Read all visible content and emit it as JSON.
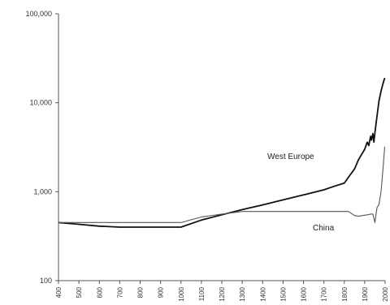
{
  "chart_data": {
    "type": "line",
    "yscale": "log",
    "ylim": [
      100,
      100000
    ],
    "xlim": [
      400,
      2000
    ],
    "yticks": [
      100,
      1000,
      10000,
      100000
    ],
    "ytick_labels": [
      "100",
      "1,000",
      "10,000",
      "100,000"
    ],
    "xticks": [
      400,
      500,
      600,
      700,
      800,
      900,
      1000,
      1100,
      1200,
      1300,
      1400,
      1500,
      1600,
      1700,
      1800,
      1900,
      2000
    ],
    "xtick_labels": [
      "400",
      "500",
      "600",
      "700",
      "800",
      "900",
      "1000",
      "1100",
      "1200",
      "1300",
      "1400",
      "1500",
      "1600",
      "1700",
      "1800",
      "1900",
      "2000"
    ],
    "grid": false,
    "series": [
      {
        "name": "West Europe",
        "color": "#111111",
        "points": [
          [
            400,
            450
          ],
          [
            500,
            430
          ],
          [
            600,
            410
          ],
          [
            700,
            400
          ],
          [
            800,
            400
          ],
          [
            900,
            400
          ],
          [
            1000,
            400
          ],
          [
            1100,
            480
          ],
          [
            1200,
            550
          ],
          [
            1300,
            630
          ],
          [
            1400,
            710
          ],
          [
            1500,
            810
          ],
          [
            1600,
            920
          ],
          [
            1700,
            1050
          ],
          [
            1750,
            1150
          ],
          [
            1800,
            1250
          ],
          [
            1820,
            1450
          ],
          [
            1850,
            1800
          ],
          [
            1870,
            2300
          ],
          [
            1900,
            3000
          ],
          [
            1910,
            3500
          ],
          [
            1913,
            3600
          ],
          [
            1920,
            3300
          ],
          [
            1929,
            4200
          ],
          [
            1933,
            3800
          ],
          [
            1940,
            4500
          ],
          [
            1945,
            3600
          ],
          [
            1950,
            4600
          ],
          [
            1960,
            7000
          ],
          [
            1970,
            10500
          ],
          [
            1980,
            13500
          ],
          [
            1990,
            16500
          ],
          [
            1998,
            19000
          ]
        ]
      },
      {
        "name": "China",
        "color": "#555555",
        "points": [
          [
            400,
            450
          ],
          [
            500,
            450
          ],
          [
            600,
            450
          ],
          [
            700,
            450
          ],
          [
            800,
            450
          ],
          [
            900,
            450
          ],
          [
            1000,
            450
          ],
          [
            1100,
            520
          ],
          [
            1200,
            560
          ],
          [
            1300,
            600
          ],
          [
            1400,
            600
          ],
          [
            1500,
            600
          ],
          [
            1600,
            600
          ],
          [
            1700,
            600
          ],
          [
            1800,
            600
          ],
          [
            1820,
            600
          ],
          [
            1850,
            540
          ],
          [
            1870,
            530
          ],
          [
            1890,
            540
          ],
          [
            1913,
            550
          ],
          [
            1930,
            560
          ],
          [
            1940,
            560
          ],
          [
            1950,
            450
          ],
          [
            1960,
            660
          ],
          [
            1970,
            720
          ],
          [
            1980,
            1000
          ],
          [
            1990,
            1850
          ],
          [
            1998,
            3200
          ]
        ]
      }
    ],
    "annotations": [
      {
        "text": "West Europe",
        "series": "West Europe"
      },
      {
        "text": "China",
        "series": "China"
      }
    ]
  }
}
